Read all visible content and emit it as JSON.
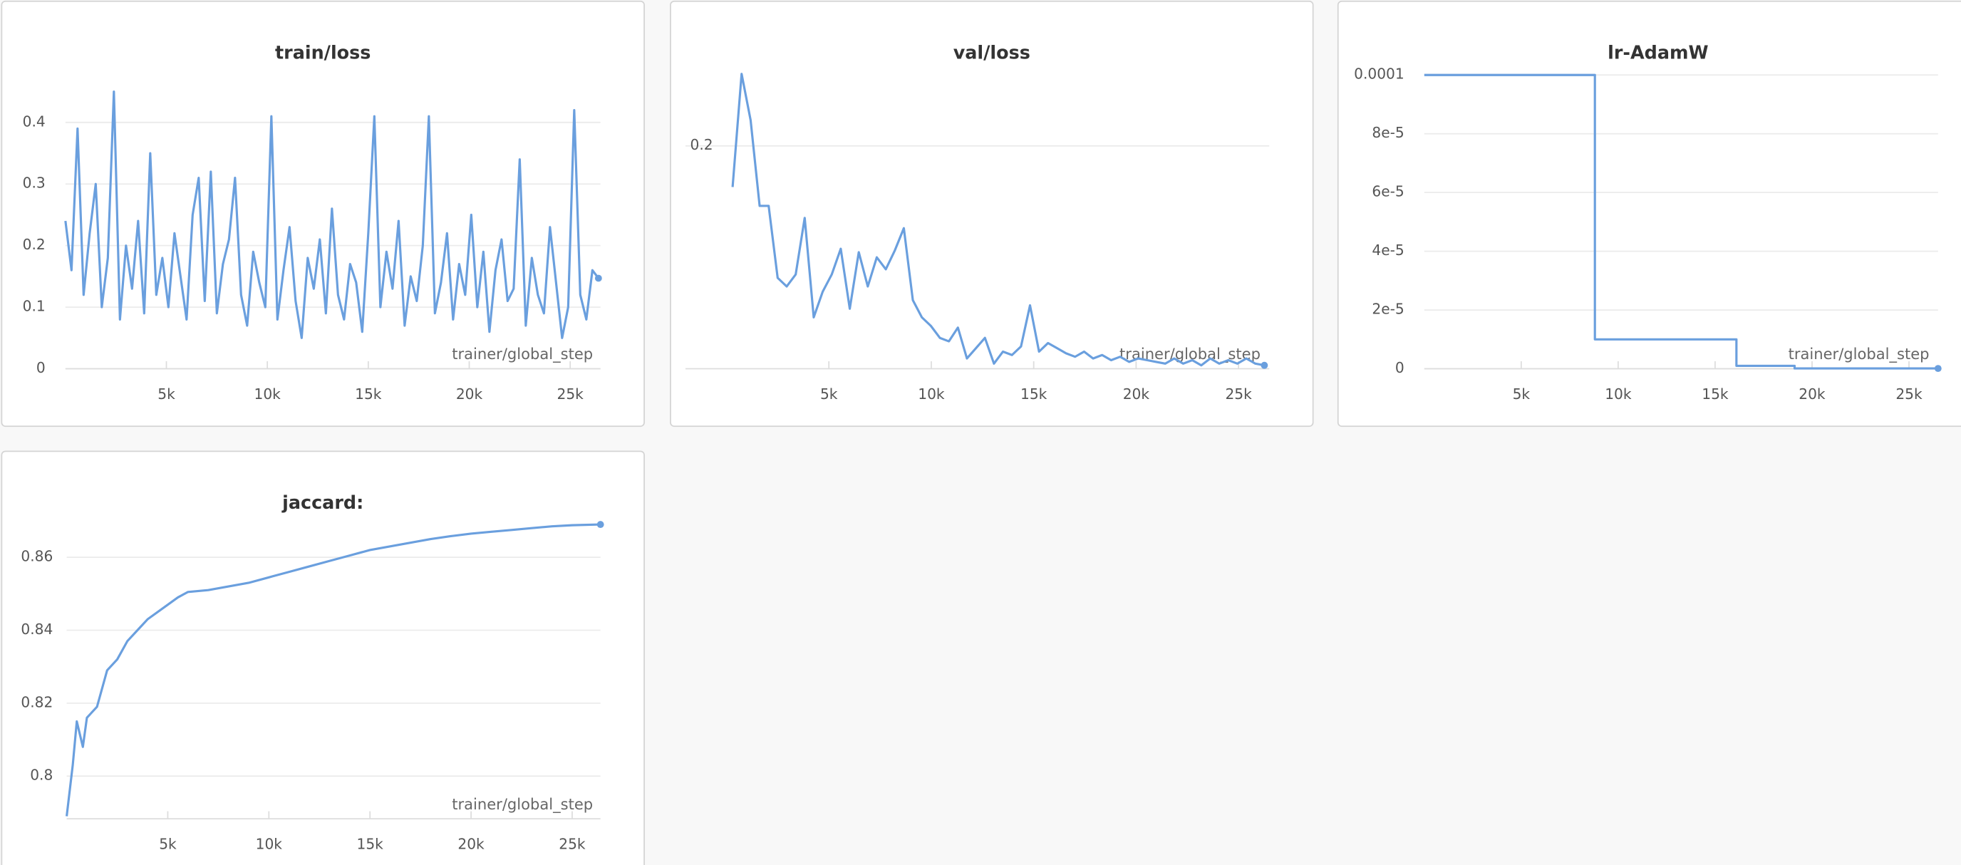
{
  "chart_data": [
    {
      "type": "line",
      "title": "train/loss",
      "x_label": "trainer/global_step",
      "color": "#6a9fde",
      "x": [
        0,
        300,
        600,
        900,
        1200,
        1500,
        1800,
        2100,
        2400,
        2700,
        3000,
        3300,
        3600,
        3900,
        4200,
        4500,
        4800,
        5100,
        5400,
        5700,
        6000,
        6300,
        6600,
        6900,
        7200,
        7500,
        7800,
        8100,
        8400,
        8700,
        9000,
        9300,
        9600,
        9900,
        10200,
        10500,
        10800,
        11100,
        11400,
        11700,
        12000,
        12300,
        12600,
        12900,
        13200,
        13500,
        13800,
        14100,
        14400,
        14700,
        15000,
        15300,
        15600,
        15900,
        16200,
        16500,
        16800,
        17100,
        17400,
        17700,
        18000,
        18300,
        18600,
        18900,
        19200,
        19500,
        19800,
        20100,
        20400,
        20700,
        21000,
        21300,
        21600,
        21900,
        22200,
        22500,
        22800,
        23100,
        23400,
        23700,
        24000,
        24300,
        24600,
        24900,
        25200,
        25500,
        25800,
        26100,
        26400
      ],
      "values": [
        0.24,
        0.16,
        0.39,
        0.12,
        0.22,
        0.3,
        0.1,
        0.18,
        0.45,
        0.08,
        0.2,
        0.13,
        0.24,
        0.09,
        0.35,
        0.12,
        0.18,
        0.1,
        0.22,
        0.15,
        0.08,
        0.25,
        0.31,
        0.11,
        0.32,
        0.09,
        0.17,
        0.21,
        0.31,
        0.12,
        0.07,
        0.19,
        0.14,
        0.1,
        0.41,
        0.08,
        0.16,
        0.23,
        0.11,
        0.05,
        0.18,
        0.13,
        0.21,
        0.09,
        0.26,
        0.12,
        0.08,
        0.17,
        0.14,
        0.06,
        0.22,
        0.41,
        0.1,
        0.19,
        0.13,
        0.24,
        0.07,
        0.15,
        0.11,
        0.2,
        0.41,
        0.09,
        0.14,
        0.22,
        0.08,
        0.17,
        0.12,
        0.25,
        0.1,
        0.19,
        0.06,
        0.16,
        0.21,
        0.11,
        0.13,
        0.34,
        0.07,
        0.18,
        0.12,
        0.09,
        0.23,
        0.14,
        0.05,
        0.1,
        0.42,
        0.12,
        0.08,
        0.16,
        0.147
      ],
      "xlim": [
        0,
        26500
      ],
      "ylim": [
        0,
        0.477
      ],
      "xticks": [
        {
          "value": 5000,
          "label": "5k"
        },
        {
          "value": 10000,
          "label": "10k"
        },
        {
          "value": 15000,
          "label": "15k"
        },
        {
          "value": 20000,
          "label": "20k"
        },
        {
          "value": 25000,
          "label": "25k"
        }
      ],
      "yticks": [
        0,
        0.1,
        0.2,
        0.3,
        0.4
      ],
      "grid": true
    },
    {
      "type": "line",
      "title": "val/loss",
      "x_label": "trainer/global_step",
      "color": "#6a9fde",
      "x": [
        300,
        740,
        1180,
        1620,
        2060,
        2500,
        2940,
        3380,
        3820,
        4260,
        4700,
        5140,
        5580,
        6020,
        6460,
        6900,
        7340,
        7780,
        8220,
        8660,
        9100,
        9540,
        9980,
        10420,
        10860,
        11300,
        11740,
        12180,
        12620,
        13060,
        13500,
        13940,
        14380,
        14820,
        15260,
        15700,
        16140,
        16580,
        17020,
        17460,
        17900,
        18340,
        18780,
        19220,
        19660,
        20100,
        20540,
        20980,
        21420,
        21860,
        22300,
        22740,
        23180,
        23620,
        24060,
        24500,
        24940,
        25380,
        25820,
        26260
      ],
      "values": [
        0.176,
        0.242,
        0.215,
        0.165,
        0.165,
        0.123,
        0.118,
        0.125,
        0.158,
        0.1,
        0.115,
        0.125,
        0.14,
        0.105,
        0.138,
        0.118,
        0.135,
        0.128,
        0.139,
        0.152,
        0.11,
        0.1,
        0.095,
        0.088,
        0.086,
        0.094,
        0.076,
        0.082,
        0.088,
        0.073,
        0.08,
        0.078,
        0.083,
        0.107,
        0.08,
        0.085,
        0.082,
        0.079,
        0.077,
        0.08,
        0.076,
        0.078,
        0.075,
        0.077,
        0.074,
        0.076,
        0.075,
        0.074,
        0.073,
        0.076,
        0.073,
        0.075,
        0.072,
        0.076,
        0.073,
        0.075,
        0.073,
        0.076,
        0.073,
        0.072
      ],
      "xlim": [
        -2000,
        26500
      ],
      "ylim": [
        0.07,
        0.245
      ],
      "xticks": [
        {
          "value": 5000,
          "label": "5k"
        },
        {
          "value": 10000,
          "label": "10k"
        },
        {
          "value": 15000,
          "label": "15k"
        },
        {
          "value": 20000,
          "label": "20k"
        },
        {
          "value": 25000,
          "label": "25k"
        }
      ],
      "yticks": [
        0.2
      ],
      "grid": true
    },
    {
      "type": "line",
      "title": "lr-AdamW",
      "x_label": "trainer/global_step",
      "color": "#6a9fde",
      "x": [
        0,
        8800,
        8800,
        16100,
        16100,
        19100,
        19100,
        26500
      ],
      "values": [
        0.0001,
        0.0001,
        1e-05,
        1e-05,
        1e-06,
        1e-06,
        1e-07,
        1e-07
      ],
      "xlim": [
        0,
        26500
      ],
      "ylim": [
        0,
        0.0001
      ],
      "xticks": [
        {
          "value": 5000,
          "label": "5k"
        },
        {
          "value": 10000,
          "label": "10k"
        },
        {
          "value": 15000,
          "label": "15k"
        },
        {
          "value": 20000,
          "label": "20k"
        },
        {
          "value": 25000,
          "label": "25k"
        }
      ],
      "yticks": [
        0,
        {
          "value": 2e-05,
          "label": "2e-5"
        },
        {
          "value": 4e-05,
          "label": "4e-5"
        },
        {
          "value": 6e-05,
          "label": "6e-5"
        },
        {
          "value": 8e-05,
          "label": "8e-5"
        },
        0.0001
      ],
      "grid": true
    },
    {
      "type": "line",
      "title": "jaccard:",
      "x_label": "trainer/global_step",
      "color": "#6a9fde",
      "x": [
        0,
        300,
        500,
        800,
        1000,
        1500,
        2000,
        2500,
        3000,
        3500,
        4000,
        5000,
        5500,
        6000,
        7000,
        8000,
        9000,
        10000,
        11000,
        12000,
        13000,
        14000,
        15000,
        16000,
        17000,
        18000,
        19000,
        20000,
        21000,
        22000,
        23000,
        24000,
        25000,
        26400
      ],
      "values": [
        0.789,
        0.803,
        0.815,
        0.808,
        0.816,
        0.819,
        0.829,
        0.832,
        0.837,
        0.84,
        0.843,
        0.847,
        0.849,
        0.8505,
        0.851,
        0.852,
        0.853,
        0.8545,
        0.856,
        0.8575,
        0.859,
        0.8605,
        0.862,
        0.863,
        0.864,
        0.865,
        0.8658,
        0.8665,
        0.867,
        0.8675,
        0.868,
        0.8685,
        0.8688,
        0.869
      ],
      "xlim": [
        0,
        26400
      ],
      "ylim": [
        0.7883,
        0.874
      ],
      "xticks": [
        {
          "value": 5000,
          "label": "5k"
        },
        {
          "value": 10000,
          "label": "10k"
        },
        {
          "value": 15000,
          "label": "15k"
        },
        {
          "value": 20000,
          "label": "20k"
        },
        {
          "value": 25000,
          "label": "25k"
        }
      ],
      "yticks": [
        0.8,
        0.82,
        0.84,
        0.86
      ],
      "grid": true
    }
  ]
}
